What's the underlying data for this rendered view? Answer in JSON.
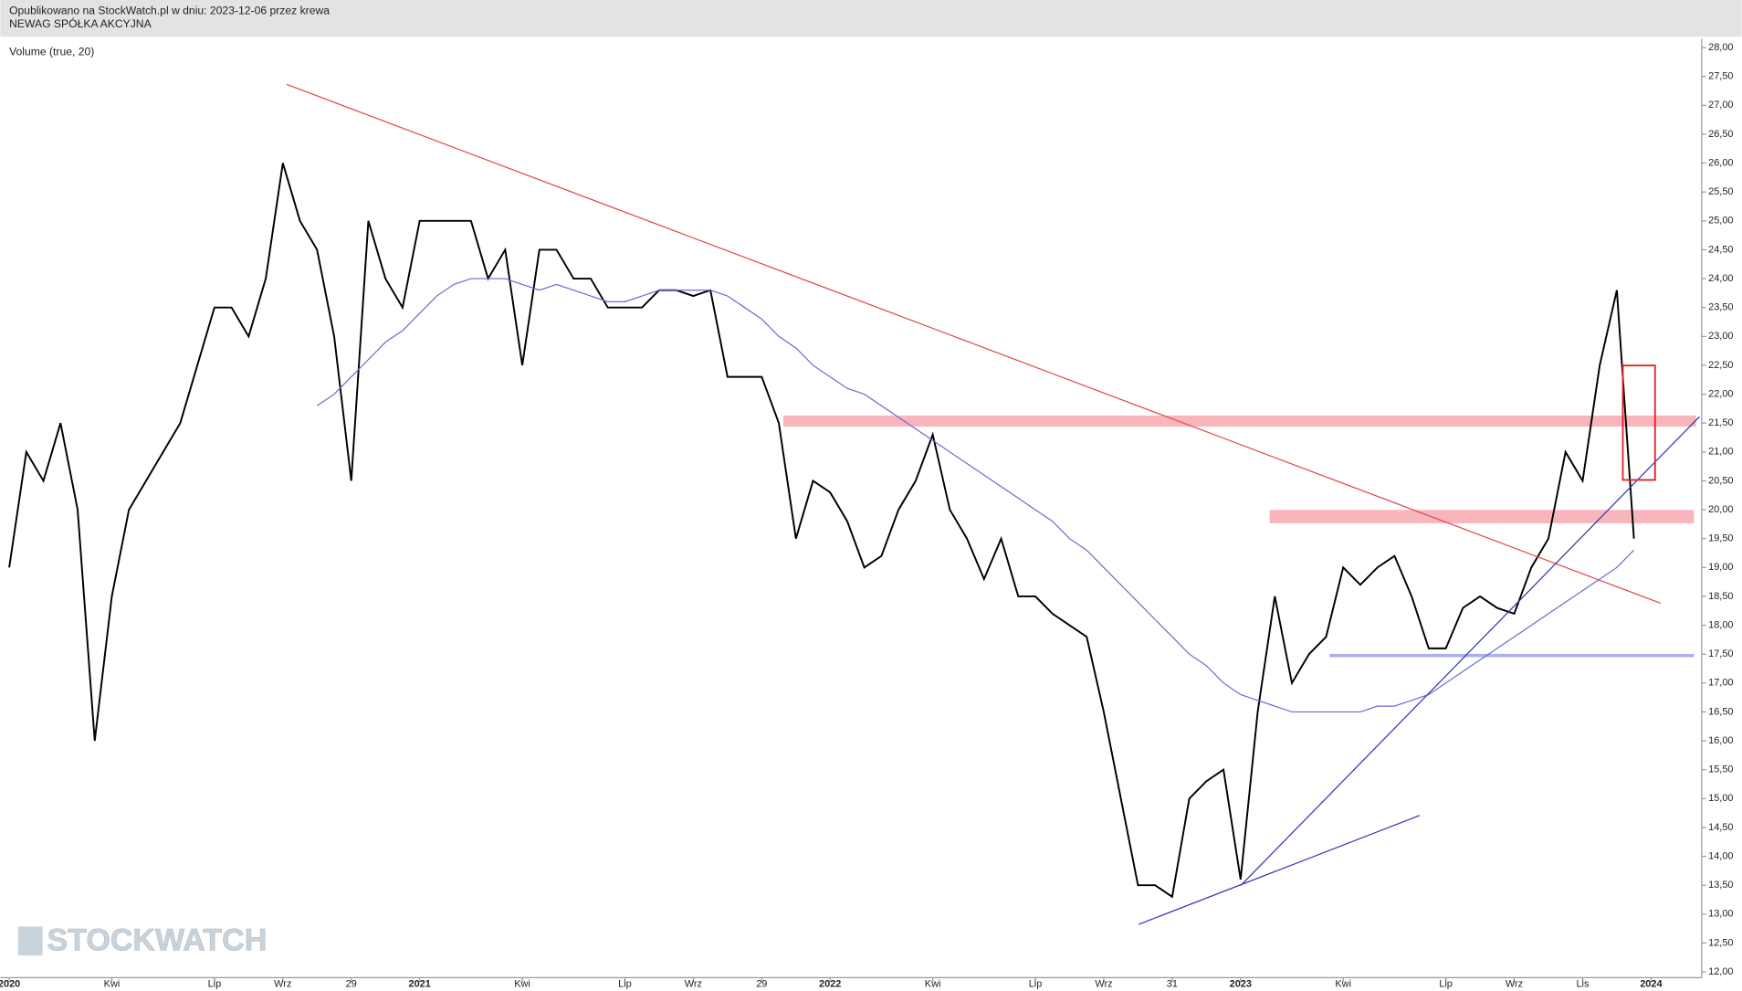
{
  "header": {
    "line1": "Opublikowano na StockWatch.pl w dniu: 2023-12-06 przez krewa",
    "line2": "NEWAG SPÓŁKA AKCYJNA"
  },
  "watermark": "STOCKWATCH",
  "chart_data": {
    "type": "line",
    "subtitle": "Volume (true, 20)",
    "categories": [
      "2020",
      null,
      null,
      null,
      null,
      null,
      "Kwi",
      null,
      null,
      null,
      null,
      null,
      "Lip",
      null,
      null,
      null,
      "Wrz",
      null,
      null,
      null,
      "29",
      null,
      null,
      null,
      "2021",
      null,
      null,
      null,
      null,
      null,
      "Kwi",
      null,
      null,
      null,
      null,
      null,
      "Lip",
      null,
      null,
      null,
      "Wrz",
      null,
      null,
      null,
      "29",
      null,
      null,
      null,
      "2022",
      null,
      null,
      null,
      null,
      null,
      "Kwi",
      null,
      null,
      null,
      null,
      null,
      "Lip",
      null,
      null,
      null,
      "Wrz",
      null,
      null,
      null,
      "31",
      null,
      null,
      null,
      "2023",
      null,
      null,
      null,
      null,
      null,
      "Kwi",
      null,
      null,
      null,
      null,
      null,
      "Lip",
      null,
      null,
      null,
      "Wrz",
      null,
      null,
      null,
      "Lis",
      null,
      null,
      null,
      "2024"
    ],
    "series": [
      {
        "color": "#000000",
        "values": [
          19.0,
          21.0,
          20.5,
          21.5,
          20.0,
          16.0,
          18.5,
          20.0,
          20.5,
          21.0,
          21.5,
          22.5,
          23.5,
          23.5,
          23.0,
          24.0,
          26.0,
          25.0,
          24.5,
          23.0,
          20.5,
          25.0,
          24.0,
          23.5,
          25.0,
          25.0,
          25.0,
          25.0,
          24.0,
          24.5,
          22.5,
          24.5,
          24.5,
          24.0,
          24.0,
          23.5,
          23.5,
          23.5,
          23.8,
          23.8,
          23.7,
          23.8,
          22.3,
          22.3,
          22.3,
          21.5,
          19.5,
          20.5,
          20.3,
          19.8,
          19.0,
          19.2,
          20.0,
          20.5,
          21.3,
          20.0,
          19.5,
          18.8,
          19.5,
          18.5,
          18.5,
          18.2,
          18.0,
          17.8,
          16.5,
          15.0,
          13.5,
          13.5,
          13.3,
          15.0,
          15.3,
          15.5,
          13.6,
          16.5,
          18.5,
          17.0,
          17.5,
          17.8,
          19.0,
          18.7,
          19.0,
          19.2,
          18.5,
          17.6,
          17.6,
          18.3,
          18.5,
          18.3,
          18.2,
          19.0,
          19.5,
          21.0,
          20.5,
          22.5,
          23.8,
          19.5,
          null
        ]
      },
      {
        "color": "#6a6ad8",
        "values": [
          null,
          null,
          null,
          null,
          null,
          null,
          null,
          null,
          null,
          null,
          null,
          null,
          null,
          null,
          null,
          null,
          null,
          null,
          21.8,
          22.0,
          22.3,
          22.6,
          22.9,
          23.1,
          23.4,
          23.7,
          23.9,
          24.0,
          24.0,
          24.0,
          23.9,
          23.8,
          23.9,
          23.8,
          23.7,
          23.6,
          23.6,
          23.7,
          23.8,
          23.8,
          23.8,
          23.8,
          23.7,
          23.5,
          23.3,
          23.0,
          22.8,
          22.5,
          22.3,
          22.1,
          22.0,
          21.8,
          21.6,
          21.4,
          21.2,
          21.0,
          20.8,
          20.6,
          20.4,
          20.2,
          20.0,
          19.8,
          19.5,
          19.3,
          19.0,
          18.7,
          18.4,
          18.1,
          17.8,
          17.5,
          17.3,
          17.0,
          16.8,
          16.7,
          16.6,
          16.5,
          16.5,
          16.5,
          16.5,
          16.5,
          16.6,
          16.6,
          16.7,
          16.8,
          17.0,
          17.2,
          17.4,
          17.6,
          17.8,
          18.0,
          18.2,
          18.4,
          18.6,
          18.8,
          19.0,
          19.3,
          null
        ]
      }
    ],
    "ylim": [
      11.9,
      28.15
    ],
    "yticks": [
      {
        "value": 12,
        "label": "12,00"
      },
      {
        "value": 12.5,
        "label": "12,50"
      },
      {
        "value": 13,
        "label": "13,00"
      },
      {
        "value": 13.5,
        "label": "13,50"
      },
      {
        "value": 14,
        "label": "14,00"
      },
      {
        "value": 14.5,
        "label": "14,50"
      },
      {
        "value": 15,
        "label": "15,00"
      },
      {
        "value": 15.5,
        "label": "15,50"
      },
      {
        "value": 16,
        "label": "16,00"
      },
      {
        "value": 16.5,
        "label": "16,50"
      },
      {
        "value": 17,
        "label": "17,00"
      },
      {
        "value": 17.5,
        "label": "17,50"
      },
      {
        "value": 18,
        "label": "18,00"
      },
      {
        "value": 18.5,
        "label": "18,50"
      },
      {
        "value": 19,
        "label": "19,00"
      },
      {
        "value": 19.5,
        "label": "19,50"
      },
      {
        "value": 20,
        "label": "20,00"
      },
      {
        "value": 20.5,
        "label": "20,50"
      },
      {
        "value": 21,
        "label": "21,00"
      },
      {
        "value": 21.5,
        "label": "21,50"
      },
      {
        "value": 22,
        "label": "22,00"
      },
      {
        "value": 22.5,
        "label": "22,50"
      },
      {
        "value": 23,
        "label": "23,00"
      },
      {
        "value": 23.5,
        "label": "23,50"
      },
      {
        "value": 24,
        "label": "24,00"
      },
      {
        "value": 24.5,
        "label": "24,50"
      },
      {
        "value": 25,
        "label": "25,00"
      },
      {
        "value": 25.5,
        "label": "25,50"
      },
      {
        "value": 26,
        "label": "26,00"
      },
      {
        "value": 26.5,
        "label": "26,50"
      },
      {
        "value": 27,
        "label": "27,00"
      },
      {
        "value": 27.5,
        "label": "27,50"
      },
      {
        "value": 28,
        "label": "28,00"
      }
    ],
    "grid": false
  }
}
